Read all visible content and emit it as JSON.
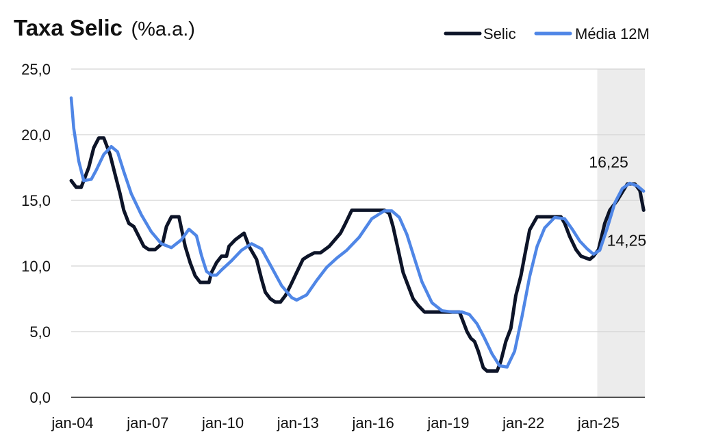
{
  "chart_data": {
    "type": "line",
    "title": "Taxa Selic",
    "subtitle": "(%a.a.)",
    "xlabel": "",
    "ylabel": "",
    "ylim": [
      0,
      25
    ],
    "yticks": [
      "0,0",
      "5,0",
      "10,0",
      "15,0",
      "20,0",
      "25,0"
    ],
    "yticks_values": [
      0,
      5,
      10,
      15,
      20,
      25
    ],
    "xticks": [
      "jan-04",
      "jan-07",
      "jan-10",
      "jan-13",
      "jan-16",
      "jan-19",
      "jan-22",
      "jan-25"
    ],
    "xticks_values": [
      2004,
      2007,
      2010,
      2013,
      2016,
      2019,
      2022,
      2025
    ],
    "xlim": [
      2004,
      2026.9
    ],
    "grid": "horizontal",
    "legend_position": "top-right",
    "shaded_region": {
      "from": 2025.0,
      "to": 2026.9,
      "color": "#ececec"
    },
    "series": [
      {
        "name": "Selic",
        "color": "#0d1428",
        "x": [
          2004.0,
          2004.2,
          2004.4,
          2004.7,
          2004.9,
          2005.1,
          2005.3,
          2005.55,
          2005.75,
          2005.95,
          2006.1,
          2006.3,
          2006.5,
          2006.7,
          2006.9,
          2007.1,
          2007.35,
          2007.65,
          2007.8,
          2008.0,
          2008.3,
          2008.55,
          2008.75,
          2008.95,
          2009.15,
          2009.35,
          2009.5,
          2009.6,
          2009.8,
          2010.0,
          2010.2,
          2010.3,
          2010.55,
          2010.9,
          2011.1,
          2011.4,
          2011.6,
          2011.75,
          2011.95,
          2012.15,
          2012.35,
          2012.55,
          2012.75,
          2013.0,
          2013.25,
          2013.45,
          2013.7,
          2013.95,
          2014.3,
          2014.75,
          2014.95,
          2015.2,
          2015.45,
          2015.65,
          2016.5,
          2016.7,
          2016.85,
          2017.05,
          2017.25,
          2017.45,
          2017.65,
          2017.85,
          2018.1,
          2018.4,
          2019.5,
          2019.65,
          2019.8,
          2019.95,
          2020.1,
          2020.25,
          2020.45,
          2020.6,
          2021.0,
          2021.15,
          2021.35,
          2021.55,
          2021.75,
          2021.95,
          2022.1,
          2022.3,
          2022.6,
          2023.0,
          2023.55,
          2023.7,
          2023.9,
          2024.15,
          2024.35,
          2024.7,
          2024.85,
          2025.05,
          2025.3,
          2025.5,
          2025.8,
          2026.2,
          2026.5,
          2026.7,
          2026.85
        ],
        "y": [
          16.5,
          16.0,
          16.0,
          17.5,
          19.0,
          19.75,
          19.75,
          18.5,
          17.0,
          15.5,
          14.25,
          13.25,
          13.0,
          12.25,
          11.5,
          11.25,
          11.25,
          11.75,
          13.0,
          13.75,
          13.75,
          11.5,
          10.25,
          9.25,
          8.75,
          8.75,
          8.75,
          9.5,
          10.25,
          10.75,
          10.75,
          11.5,
          12.0,
          12.5,
          11.5,
          10.5,
          9.0,
          8.0,
          7.5,
          7.25,
          7.25,
          7.75,
          8.5,
          9.5,
          10.5,
          10.75,
          11.0,
          11.0,
          11.5,
          12.5,
          13.25,
          14.25,
          14.25,
          14.25,
          14.25,
          14.0,
          13.0,
          11.25,
          9.5,
          8.5,
          7.5,
          7.0,
          6.5,
          6.5,
          6.5,
          5.75,
          5.0,
          4.5,
          4.25,
          3.5,
          2.25,
          2.0,
          2.0,
          2.75,
          4.25,
          5.25,
          7.75,
          9.25,
          10.75,
          12.75,
          13.75,
          13.75,
          13.75,
          13.25,
          12.25,
          11.25,
          10.75,
          10.5,
          10.75,
          11.25,
          13.25,
          14.25,
          15.0,
          16.25,
          16.25,
          15.75,
          14.25
        ]
      },
      {
        "name": "Média 12M",
        "color": "#4f86e6",
        "x": [
          2004.0,
          2004.1,
          2004.3,
          2004.5,
          2004.8,
          2005.0,
          2005.3,
          2005.6,
          2005.85,
          2006.1,
          2006.4,
          2006.8,
          2007.2,
          2007.6,
          2008.0,
          2008.4,
          2008.7,
          2009.0,
          2009.2,
          2009.4,
          2009.6,
          2009.8,
          2010.0,
          2010.4,
          2010.8,
          2011.2,
          2011.6,
          2012.0,
          2012.4,
          2012.8,
          2013.0,
          2013.4,
          2013.8,
          2014.2,
          2014.6,
          2015.0,
          2015.5,
          2016.0,
          2016.5,
          2016.8,
          2017.1,
          2017.4,
          2017.7,
          2018.0,
          2018.4,
          2018.8,
          2019.2,
          2019.6,
          2019.9,
          2020.2,
          2020.5,
          2020.8,
          2021.1,
          2021.4,
          2021.7,
          2022.0,
          2022.3,
          2022.6,
          2022.9,
          2023.3,
          2023.7,
          2024.0,
          2024.3,
          2024.6,
          2024.85,
          2025.1,
          2025.4,
          2025.7,
          2026.0,
          2026.3,
          2026.6,
          2026.85
        ],
        "y": [
          22.8,
          20.5,
          18.0,
          16.5,
          16.6,
          17.3,
          18.5,
          19.1,
          18.7,
          17.2,
          15.5,
          13.9,
          12.6,
          11.7,
          11.4,
          12.0,
          12.8,
          12.3,
          10.8,
          9.6,
          9.3,
          9.3,
          9.7,
          10.4,
          11.2,
          11.7,
          11.3,
          9.9,
          8.5,
          7.6,
          7.4,
          7.8,
          8.9,
          9.9,
          10.6,
          11.2,
          12.2,
          13.6,
          14.2,
          14.2,
          13.7,
          12.4,
          10.6,
          8.8,
          7.2,
          6.6,
          6.5,
          6.5,
          6.3,
          5.6,
          4.5,
          3.3,
          2.4,
          2.3,
          3.5,
          6.2,
          9.2,
          11.5,
          12.9,
          13.7,
          13.6,
          12.8,
          11.9,
          11.3,
          10.9,
          11.2,
          12.9,
          14.8,
          15.9,
          16.3,
          16.1,
          15.7
        ]
      }
    ],
    "annotations": [
      {
        "text": "16,25",
        "x": 2026.0,
        "y": 16.25,
        "position": "above"
      },
      {
        "text": "14,25",
        "x": 2026.85,
        "y": 14.25,
        "position": "below-right"
      }
    ]
  }
}
